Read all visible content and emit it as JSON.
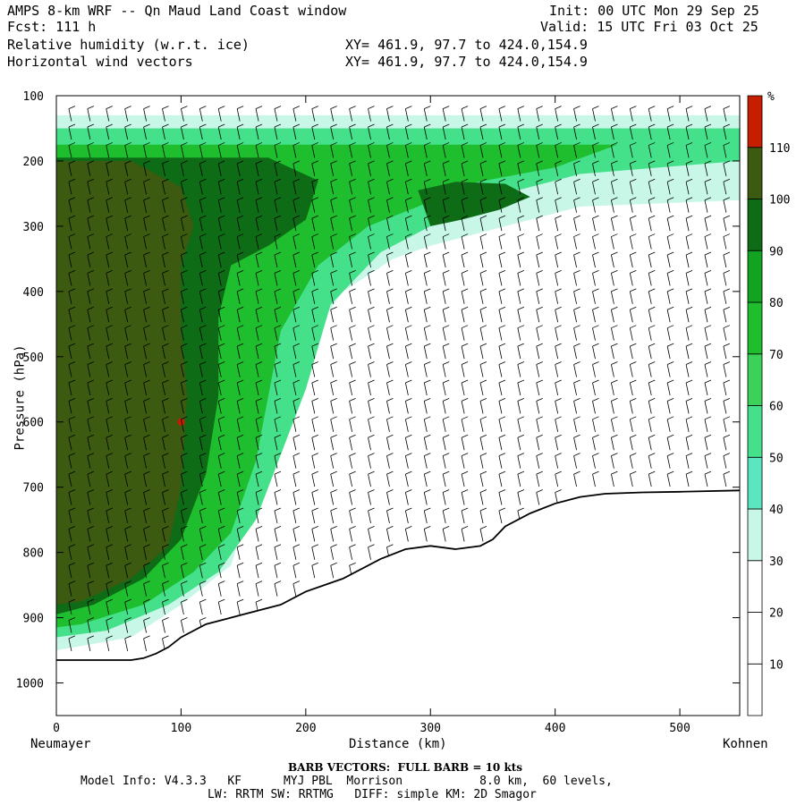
{
  "header": {
    "title": "AMPS 8-km WRF -- Qn Maud Land Coast window",
    "fcst": "Fcst: 111 h",
    "field1": "Relative humidity (w.r.t. ice)",
    "field2": "Horizontal wind vectors",
    "init": "Init: 00 UTC Mon 29 Sep 25",
    "valid": "Valid: 15 UTC Fri 03 Oct 25",
    "xy1": "XY= 461.9, 97.7 to 424.0,154.9",
    "xy2": "XY= 461.9, 97.7 to 424.0,154.9"
  },
  "footer": {
    "barb": "BARB VECTORS:  FULL BARB = 10 kts",
    "model1": "Model Info: V4.3.3   KF      MYJ PBL  Morrison           8.0 km,  60 levels,",
    "model2": "LW: RRTM SW: RRTMG   DIFF: simple KM: 2D Smagor",
    "left_end": "Neumayer",
    "right_end": "Kohnen"
  },
  "colorbar": {
    "unit": "%",
    "levels": [
      10,
      20,
      30,
      40,
      50,
      60,
      70,
      80,
      90,
      100,
      110
    ],
    "colors": [
      "#ffffff",
      "#ffffff",
      "#ffffff",
      "#c8f7e8",
      "#5ce6bf",
      "#44e18a",
      "#3cd25a",
      "#1fbe2e",
      "#12a320",
      "#0e6b16",
      "#3c5a10",
      "#c81e00"
    ]
  },
  "chart_data": {
    "type": "heatmap",
    "xlabel": "Distance (km)",
    "ylabel": "Pressure (hPa)",
    "xlim": [
      0,
      548
    ],
    "ylim": [
      1050,
      100
    ],
    "x_ticks": [
      0,
      100,
      200,
      300,
      400,
      500
    ],
    "y_ticks": [
      100,
      200,
      300,
      400,
      500,
      600,
      700,
      800,
      900,
      1000
    ],
    "terrain_surface": [
      [
        0,
        965
      ],
      [
        30,
        965
      ],
      [
        60,
        965
      ],
      [
        70,
        962
      ],
      [
        80,
        955
      ],
      [
        90,
        945
      ],
      [
        100,
        930
      ],
      [
        120,
        910
      ],
      [
        150,
        895
      ],
      [
        180,
        880
      ],
      [
        200,
        860
      ],
      [
        230,
        840
      ],
      [
        260,
        810
      ],
      [
        280,
        795
      ],
      [
        300,
        790
      ],
      [
        320,
        795
      ],
      [
        340,
        790
      ],
      [
        350,
        780
      ],
      [
        360,
        760
      ],
      [
        380,
        740
      ],
      [
        400,
        725
      ],
      [
        420,
        715
      ],
      [
        440,
        710
      ],
      [
        470,
        708
      ],
      [
        500,
        707
      ],
      [
        548,
        705
      ]
    ],
    "rh_regions": [
      {
        "level": 30,
        "outline": [
          [
            0,
            130
          ],
          [
            548,
            130
          ],
          [
            548,
            260
          ],
          [
            420,
            270
          ],
          [
            380,
            290
          ],
          [
            300,
            330
          ],
          [
            270,
            350
          ],
          [
            230,
            400
          ],
          [
            200,
            480
          ],
          [
            180,
            600
          ],
          [
            160,
            700
          ],
          [
            140,
            820
          ],
          [
            100,
            880
          ],
          [
            60,
            930
          ],
          [
            0,
            950
          ]
        ]
      },
      {
        "level": 50,
        "outline": [
          [
            0,
            150
          ],
          [
            548,
            150
          ],
          [
            548,
            200
          ],
          [
            420,
            220
          ],
          [
            360,
            250
          ],
          [
            300,
            300
          ],
          [
            260,
            340
          ],
          [
            220,
            420
          ],
          [
            200,
            550
          ],
          [
            180,
            650
          ],
          [
            160,
            750
          ],
          [
            130,
            830
          ],
          [
            90,
            880
          ],
          [
            40,
            920
          ],
          [
            0,
            930
          ]
        ]
      },
      {
        "level": 70,
        "outline": [
          [
            0,
            175
          ],
          [
            450,
            175
          ],
          [
            400,
            210
          ],
          [
            330,
            235
          ],
          [
            290,
            270
          ],
          [
            250,
            300
          ],
          [
            210,
            360
          ],
          [
            180,
            460
          ],
          [
            170,
            560
          ],
          [
            160,
            660
          ],
          [
            140,
            770
          ],
          [
            110,
            830
          ],
          [
            70,
            880
          ],
          [
            20,
            910
          ],
          [
            0,
            915
          ]
        ]
      },
      {
        "level": 90,
        "outline": [
          [
            0,
            195
          ],
          [
            170,
            195
          ],
          [
            210,
            230
          ],
          [
            200,
            290
          ],
          [
            170,
            330
          ],
          [
            140,
            360
          ],
          [
            130,
            440
          ],
          [
            130,
            560
          ],
          [
            120,
            680
          ],
          [
            100,
            780
          ],
          [
            70,
            840
          ],
          [
            30,
            880
          ],
          [
            0,
            895
          ]
        ]
      },
      {
        "level": 100,
        "outline": [
          [
            0,
            200
          ],
          [
            60,
            200
          ],
          [
            100,
            240
          ],
          [
            110,
            300
          ],
          [
            100,
            360
          ],
          [
            100,
            460
          ],
          [
            105,
            560
          ],
          [
            100,
            700
          ],
          [
            90,
            790
          ],
          [
            60,
            840
          ],
          [
            20,
            875
          ],
          [
            0,
            880
          ]
        ]
      },
      {
        "level": 90,
        "outline": [
          [
            290,
            245
          ],
          [
            320,
            232
          ],
          [
            360,
            235
          ],
          [
            380,
            255
          ],
          [
            355,
            275
          ],
          [
            325,
            290
          ],
          [
            300,
            300
          ]
        ]
      }
    ],
    "barb_note": "full barb = 10 kts"
  }
}
